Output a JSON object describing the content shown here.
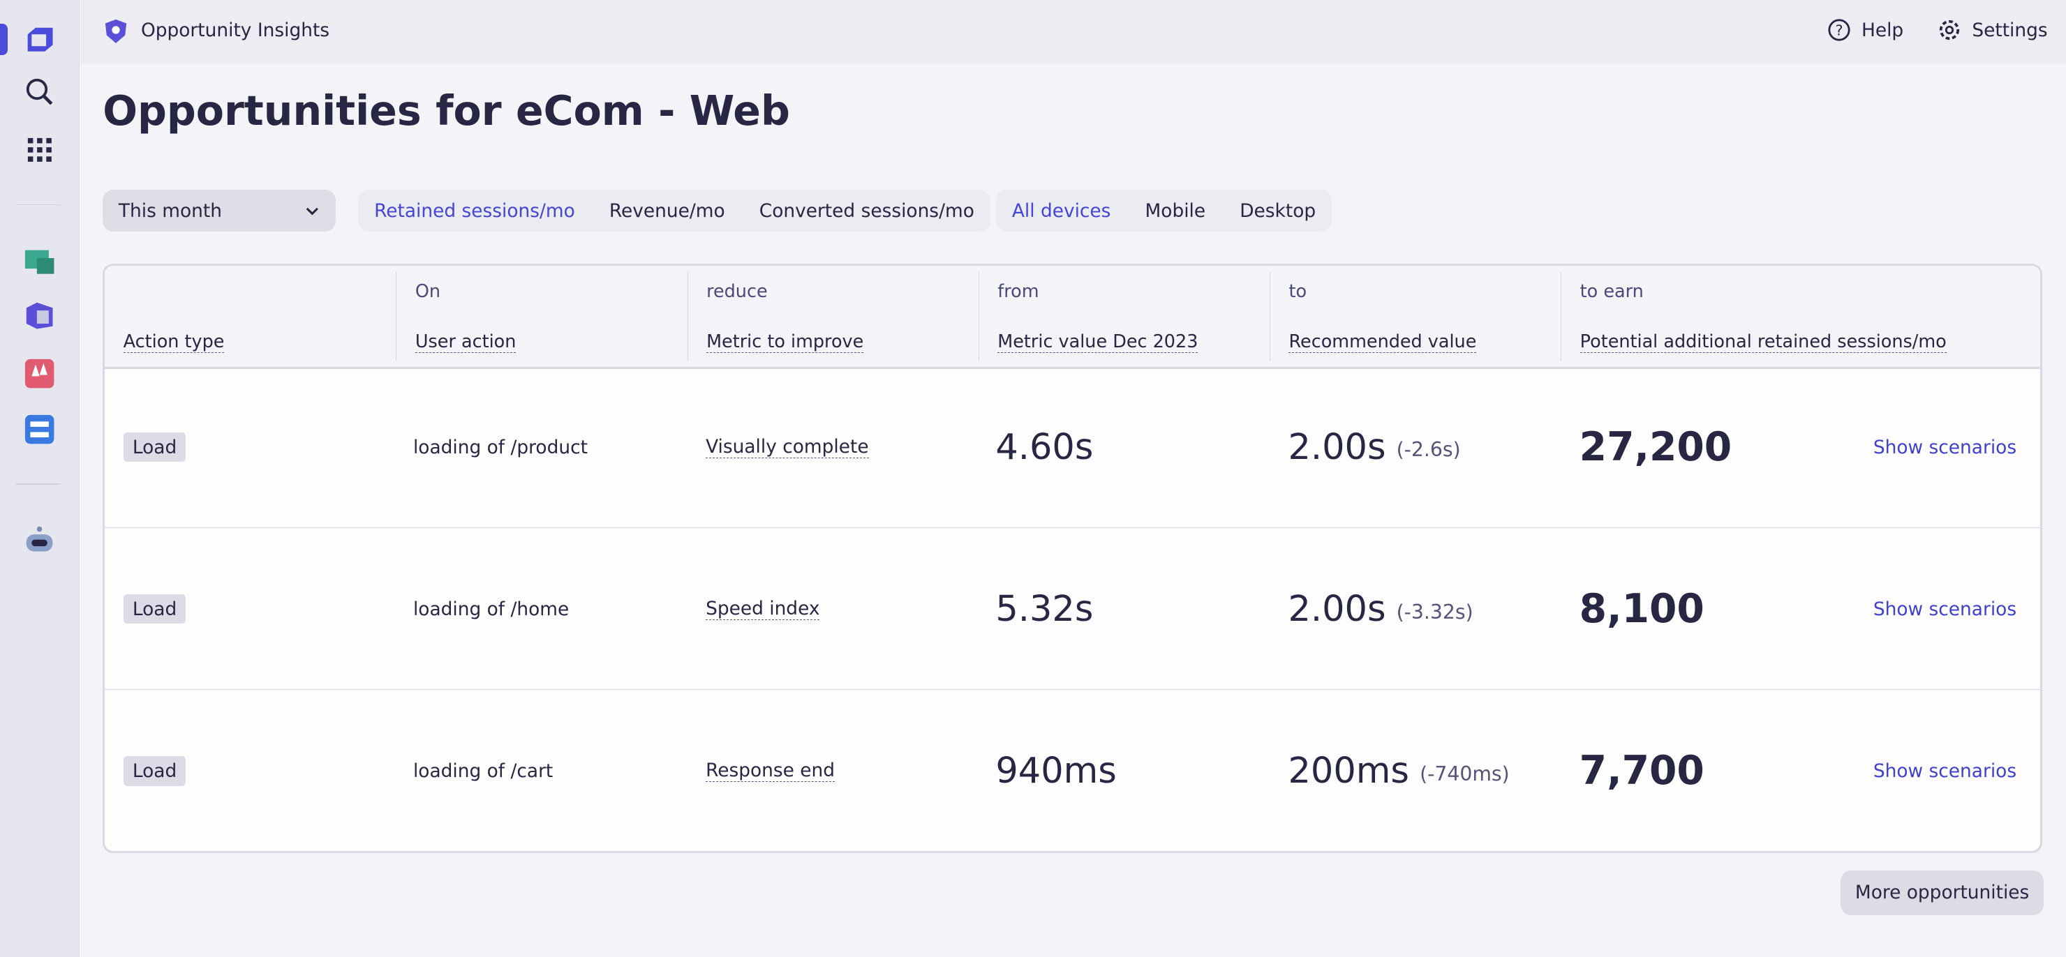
{
  "app": {
    "name": "Opportunity Insights",
    "help": "Help",
    "settings": "Settings"
  },
  "page": {
    "title": "Opportunities for eCom - Web"
  },
  "filters": {
    "timeframe": "This month",
    "metrics": [
      "Retained sessions/mo",
      "Revenue/mo",
      "Converted sessions/mo"
    ],
    "metric_selected": "Retained sessions/mo",
    "devices": [
      "All devices",
      "Mobile",
      "Desktop"
    ],
    "device_selected": "All devices"
  },
  "table": {
    "columns": [
      {
        "top": "",
        "label": "Action type"
      },
      {
        "top": "On",
        "label": "User action"
      },
      {
        "top": "reduce",
        "label": "Metric to improve"
      },
      {
        "top": "from",
        "label": "Metric value Dec 2023"
      },
      {
        "top": "to",
        "label": "Recommended value"
      },
      {
        "top": "to earn",
        "label": "Potential additional retained sessions/mo"
      }
    ],
    "rows": [
      {
        "type": "Load",
        "action": "loading of /product",
        "metric": "Visually complete",
        "from": "4.60s",
        "to": "2.00s",
        "delta": "(-2.6s)",
        "earn": "27,200",
        "link": "Show scenarios"
      },
      {
        "type": "Load",
        "action": "loading of /home",
        "metric": "Speed index",
        "from": "5.32s",
        "to": "2.00s",
        "delta": "(-3.32s)",
        "earn": "8,100",
        "link": "Show scenarios"
      },
      {
        "type": "Load",
        "action": "loading of /cart",
        "metric": "Response end",
        "from": "940ms",
        "to": "200ms",
        "delta": "(-740ms)",
        "earn": "7,700",
        "link": "Show scenarios"
      }
    ]
  },
  "more_button": "More opportunities",
  "colors": {
    "accent": "#4545d6",
    "text": "#272744"
  }
}
